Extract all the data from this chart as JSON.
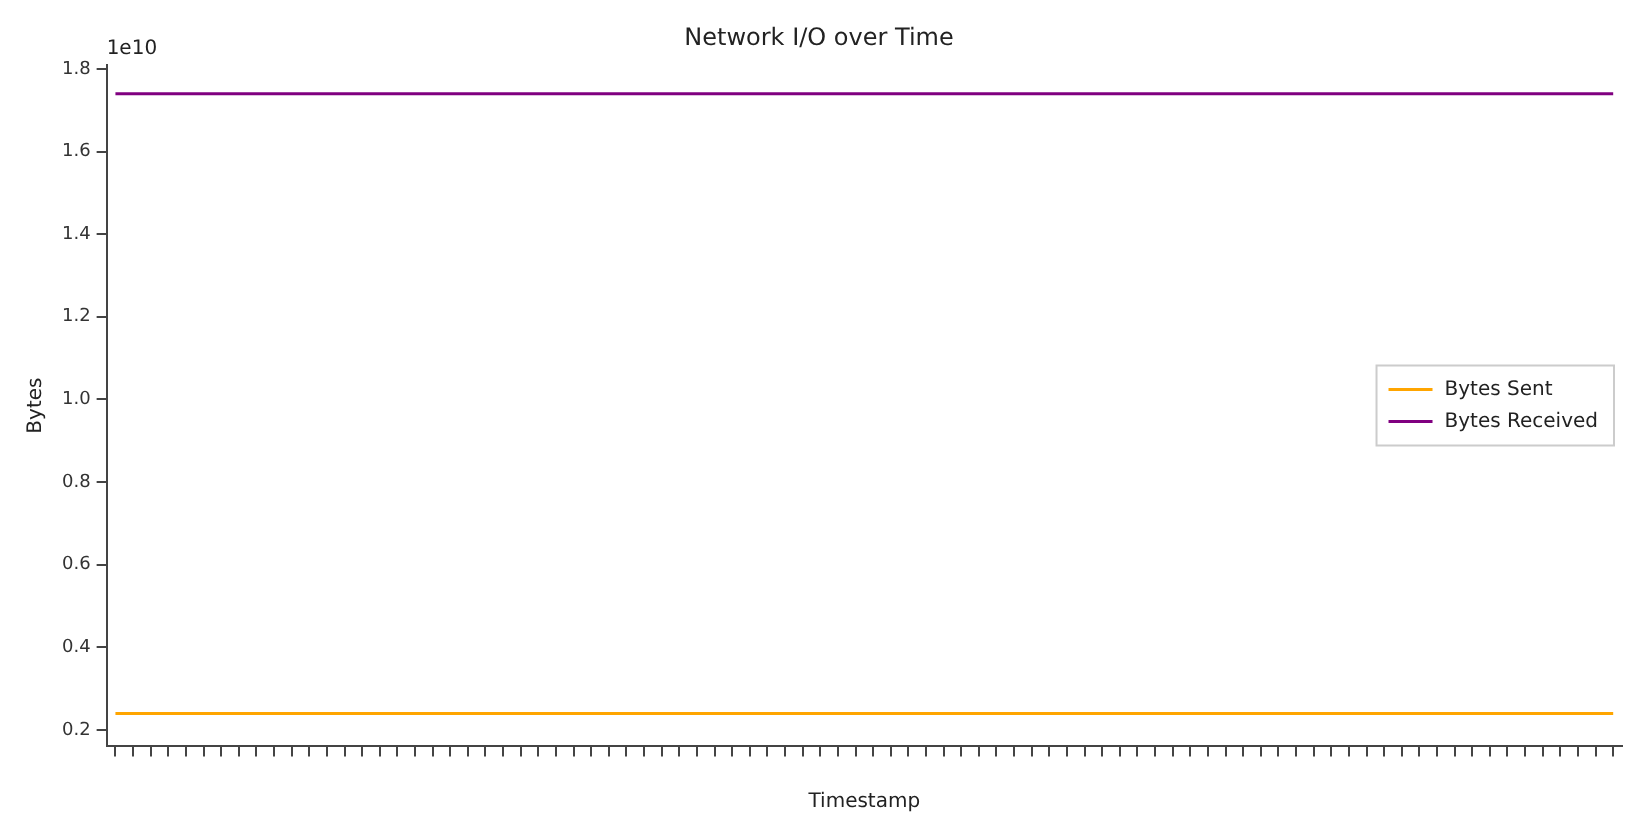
{
  "chart_data": {
    "type": "line",
    "title": "Network I/O over Time",
    "xlabel": "Timestamp",
    "ylabel": "Bytes",
    "annotations": [
      "1e10"
    ],
    "categories": [
      null,
      null,
      null,
      null,
      null,
      null,
      null,
      null,
      null,
      null,
      null,
      null,
      null,
      null,
      null,
      null,
      null,
      null,
      null,
      null,
      null,
      null,
      null,
      null,
      null,
      null,
      null,
      null,
      null,
      null,
      null,
      null,
      null,
      null,
      null,
      null,
      null,
      null,
      null,
      null,
      null,
      null,
      null,
      null,
      null,
      null,
      null,
      null,
      null,
      null,
      null,
      null,
      null,
      null,
      null,
      null,
      null,
      null,
      null,
      null,
      null,
      null,
      null,
      null,
      null,
      null,
      null,
      null,
      null,
      null,
      null,
      null,
      null,
      null,
      null,
      null,
      null,
      null,
      null,
      null,
      null,
      null,
      null,
      null,
      null,
      null
    ],
    "series": [
      {
        "name": "Bytes Sent",
        "color": "#ffa500",
        "values": [
          0.24,
          0.24,
          0.24,
          0.24,
          0.24,
          0.24,
          0.24,
          0.24,
          0.24,
          0.24,
          0.24,
          0.24,
          0.24,
          0.24,
          0.24,
          0.24,
          0.24,
          0.24,
          0.24,
          0.24,
          0.24,
          0.24,
          0.24,
          0.24,
          0.24,
          0.24,
          0.24,
          0.24,
          0.24,
          0.24,
          0.24,
          0.24,
          0.24,
          0.24,
          0.24,
          0.24,
          0.24,
          0.24,
          0.24,
          0.24,
          0.24,
          0.24,
          0.24,
          0.24,
          0.24,
          0.24,
          0.24,
          0.24,
          0.24,
          0.24,
          0.24,
          0.24,
          0.24,
          0.24,
          0.24,
          0.24,
          0.24,
          0.24,
          0.24,
          0.24,
          0.24,
          0.24,
          0.24,
          0.24,
          0.24,
          0.24,
          0.24,
          0.24,
          0.24,
          0.24,
          0.24,
          0.24,
          0.24,
          0.24,
          0.24,
          0.24,
          0.24,
          0.24,
          0.24,
          0.24,
          0.24,
          0.24,
          0.24,
          0.24,
          0.24,
          0.24
        ]
      },
      {
        "name": "Bytes Received",
        "color": "#800080",
        "values": [
          1.74,
          1.74,
          1.74,
          1.74,
          1.74,
          1.74,
          1.74,
          1.74,
          1.74,
          1.74,
          1.74,
          1.74,
          1.74,
          1.74,
          1.74,
          1.74,
          1.74,
          1.74,
          1.74,
          1.74,
          1.74,
          1.74,
          1.74,
          1.74,
          1.74,
          1.74,
          1.74,
          1.74,
          1.74,
          1.74,
          1.74,
          1.74,
          1.74,
          1.74,
          1.74,
          1.74,
          1.74,
          1.74,
          1.74,
          1.74,
          1.74,
          1.74,
          1.74,
          1.74,
          1.74,
          1.74,
          1.74,
          1.74,
          1.74,
          1.74,
          1.74,
          1.74,
          1.74,
          1.74,
          1.74,
          1.74,
          1.74,
          1.74,
          1.74,
          1.74,
          1.74,
          1.74,
          1.74,
          1.74,
          1.74,
          1.74,
          1.74,
          1.74,
          1.74,
          1.74,
          1.74,
          1.74,
          1.74,
          1.74,
          1.74,
          1.74,
          1.74,
          1.74,
          1.74,
          1.74,
          1.74,
          1.74,
          1.74,
          1.74,
          1.74,
          1.74
        ]
      }
    ],
    "ylim": [
      0.16,
      1.81
    ],
    "yticks": [
      0.2,
      0.4,
      0.6,
      0.8,
      {
        "value": 1,
        "label": "1.0"
      },
      1.2,
      1.4,
      1.6,
      1.8
    ],
    "grid": false,
    "legend": "right",
    "marker": "none",
    "line_style": "solid"
  }
}
